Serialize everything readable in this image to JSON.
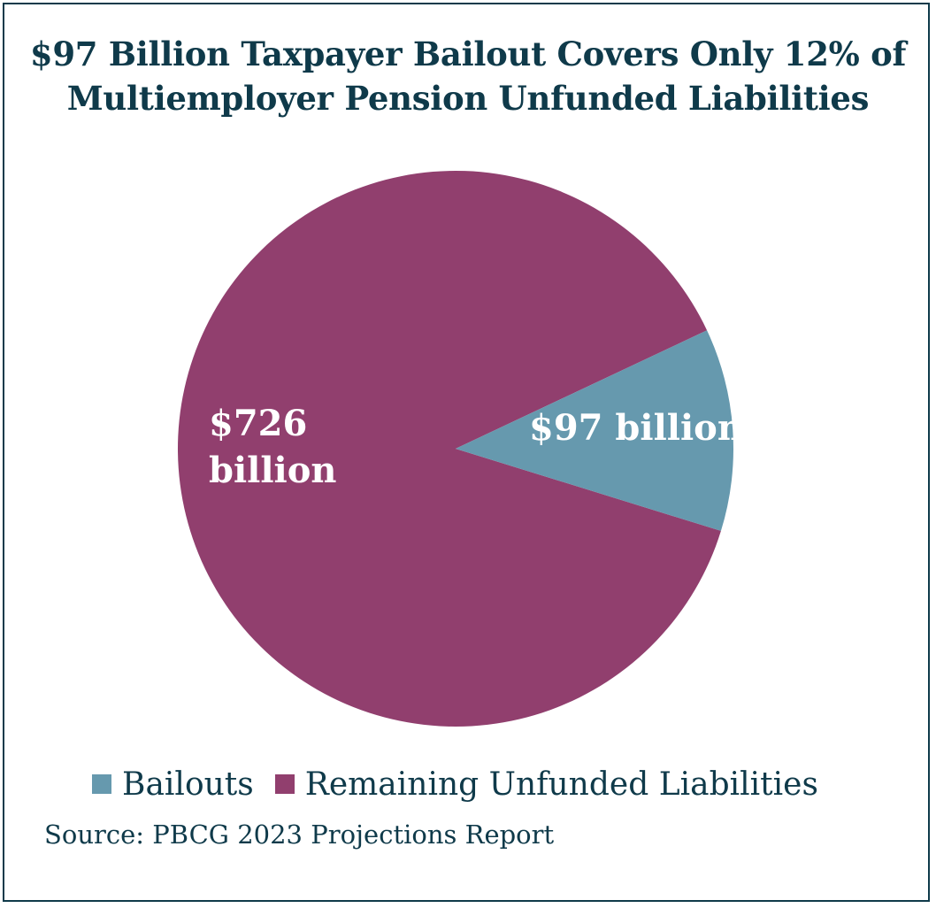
{
  "chart_data": {
    "type": "pie",
    "title": "$97 Billion Taxpayer Bailout Covers Only 12% of Multiemployer Pension Unfunded Liabilities",
    "title_lines": [
      "$97 Billion Taxpayer Bailout Covers Only 12% of",
      "Multiemployer Pension Unfunded Liabilities"
    ],
    "slices": [
      {
        "name": "Bailouts",
        "value": 97,
        "label": "$97 billion",
        "color": "#6699ae"
      },
      {
        "name": "Remaining Unfunded Liabilities",
        "value": 726,
        "label_lines": [
          "$726",
          "billion"
        ],
        "color": "#913f6e"
      }
    ],
    "legend": [
      "Bailouts",
      "Remaining Unfunded Liabilities"
    ],
    "legend_placement": "bottom",
    "source": "Source: PBCG 2023 Projections Report"
  },
  "colors": {
    "text": "#0f3a4a",
    "border": "#0f3a4a",
    "background": "#ffffff"
  }
}
